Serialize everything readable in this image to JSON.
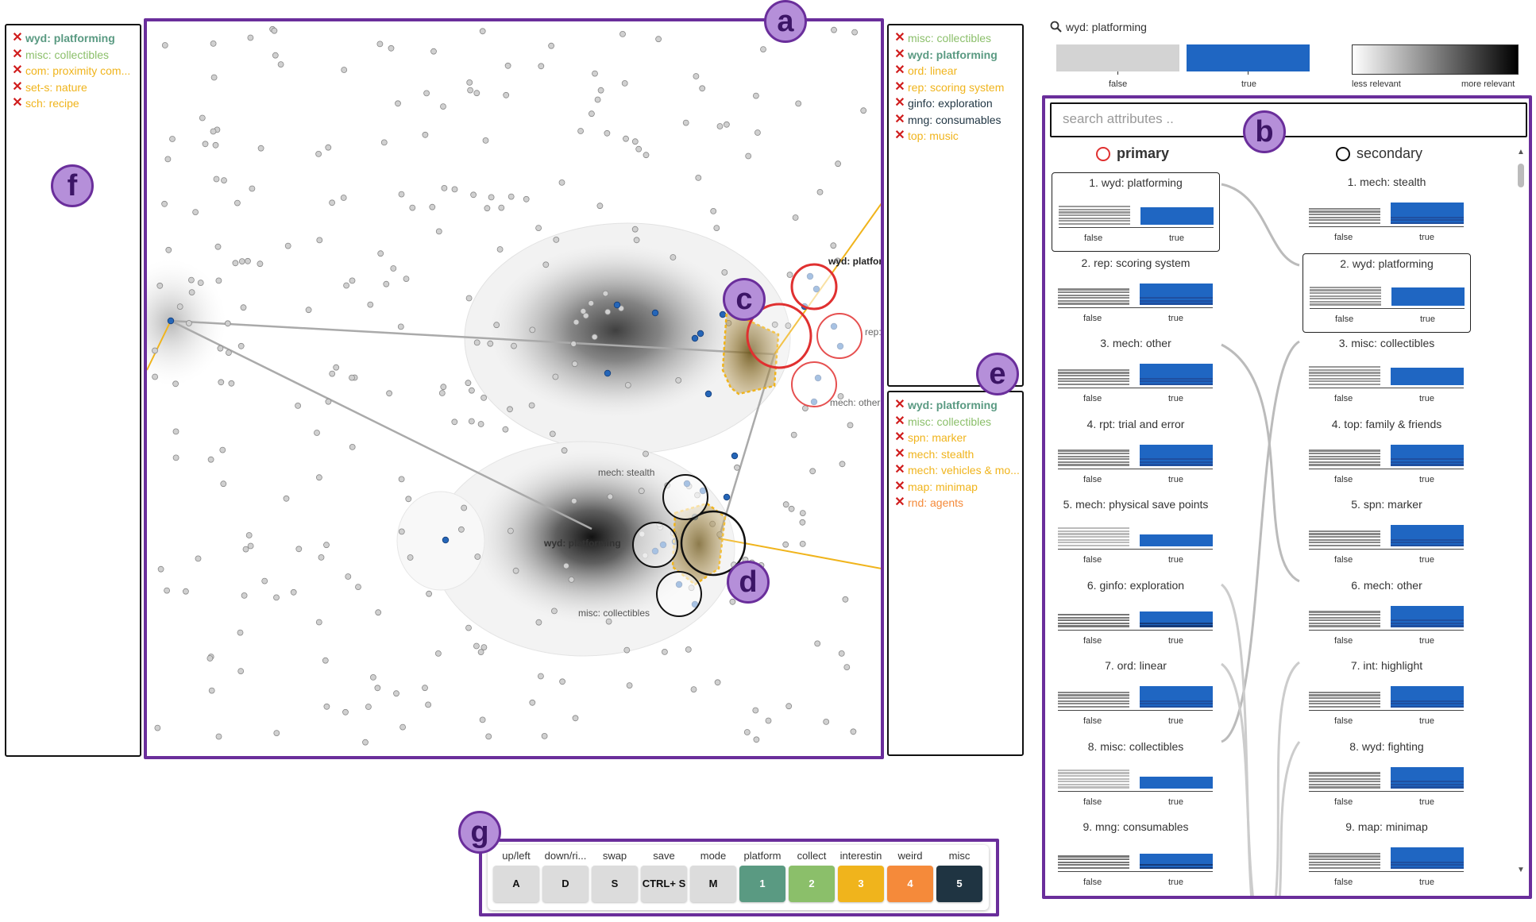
{
  "left_panel": {
    "tags": [
      {
        "label": "wyd: platforming",
        "color": "#5a9a82",
        "bold": true
      },
      {
        "label": "misc: collectibles",
        "color": "#8bbf6a"
      },
      {
        "label": "com: proximity com...",
        "color": "#f0b41c"
      },
      {
        "label": "set-s: nature",
        "color": "#f0b41c"
      },
      {
        "label": "sch: recipe",
        "color": "#f0b41c"
      }
    ]
  },
  "right_top_panel": {
    "tags": [
      {
        "label": "misc: collectibles",
        "color": "#8bbf6a"
      },
      {
        "label": "wyd: platforming",
        "color": "#5a9a82",
        "bold": true
      },
      {
        "label": "ord: linear",
        "color": "#f0b41c"
      },
      {
        "label": "rep: scoring system",
        "color": "#f0b41c"
      },
      {
        "label": "ginfo: exploration",
        "color": "#1f3442"
      },
      {
        "label": "mng: consumables",
        "color": "#1f3442"
      },
      {
        "label": "top: music",
        "color": "#f0b41c"
      }
    ]
  },
  "right_bottom_panel": {
    "tags": [
      {
        "label": "wyd: platforming",
        "color": "#5a9a82",
        "bold": true
      },
      {
        "label": "misc: collectibles",
        "color": "#8bbf6a"
      },
      {
        "label": "spn: marker",
        "color": "#f0b41c"
      },
      {
        "label": "mech: stealth",
        "color": "#f0b41c"
      },
      {
        "label": "mech: vehicles & mo...",
        "color": "#f0b41c"
      },
      {
        "label": "map: minimap",
        "color": "#f0b41c"
      },
      {
        "label": "rnd: agents",
        "color": "#f58a3a"
      }
    ]
  },
  "callouts": {
    "a": "a",
    "b": "b",
    "c": "c",
    "d": "d",
    "e": "e",
    "f": "f",
    "g": "g"
  },
  "map_labels": {
    "wyd_platform": "wyd: platform",
    "rep_s": "rep: s",
    "mech_other": "mech: other",
    "mech_stealth": "mech: stealth",
    "wyd_platforming": "wyd: platforming",
    "misc_collectibles": "misc: collectibles"
  },
  "legend": {
    "query": "wyd: platforming",
    "false_label": "false",
    "true_label": "true",
    "less_label": "less relevant",
    "more_label": "more relevant",
    "false_color": "#d3d3d3",
    "true_color": "#1f66c2"
  },
  "attributes": {
    "search_placeholder": "search attributes ..",
    "primary_header": "primary",
    "secondary_header": "secondary",
    "primary": [
      {
        "label": "1. wyd: platforming",
        "selected": true,
        "fh": 0.85,
        "th": 0.75,
        "fs": "#999",
        "ts": "#1f66c2"
      },
      {
        "label": "2. rep: scoring system",
        "fh": 0.7,
        "th": 0.9,
        "fs": "#888",
        "ts": "#1f4fa0"
      },
      {
        "label": "3. mech: other",
        "fh": 0.7,
        "th": 0.9,
        "fs": "#888",
        "ts": "#1f4fa0"
      },
      {
        "label": "4. rpt: trial and error",
        "fh": 0.7,
        "th": 0.9,
        "fs": "#888",
        "ts": "#1f4fa0"
      },
      {
        "label": "5. mech: physical save points",
        "fh": 0.85,
        "th": 0.5,
        "fs": "#bbb",
        "ts": "#1f66c2"
      },
      {
        "label": "6. ginfo: exploration",
        "fh": 0.65,
        "th": 0.65,
        "fs": "#777",
        "ts": "#153b7a"
      },
      {
        "label": "7. ord: linear",
        "fh": 0.7,
        "th": 0.9,
        "fs": "#888",
        "ts": "#1f4fa0"
      },
      {
        "label": "8. misc: collectibles",
        "fh": 0.85,
        "th": 0.5,
        "fs": "#bbb",
        "ts": "#1f66c2"
      },
      {
        "label": "9. mng: consumables",
        "fh": 0.65,
        "th": 0.65,
        "fs": "#777",
        "ts": "#153b7a"
      }
    ],
    "secondary": [
      {
        "label": "1. mech: stealth",
        "fh": 0.7,
        "th": 0.9,
        "fs": "#888",
        "ts": "#1f4fa0"
      },
      {
        "label": "2. wyd: platforming",
        "selected": true,
        "fh": 0.85,
        "th": 0.75,
        "fs": "#999",
        "ts": "#1f66c2"
      },
      {
        "label": "3. misc: collectibles",
        "fh": 0.85,
        "th": 0.75,
        "fs": "#999",
        "ts": "#1f66c2"
      },
      {
        "label": "4. top: family & friends",
        "fh": 0.7,
        "th": 0.9,
        "fs": "#888",
        "ts": "#1f4fa0"
      },
      {
        "label": "5. spn: marker",
        "fh": 0.7,
        "th": 0.9,
        "fs": "#888",
        "ts": "#1f4fa0"
      },
      {
        "label": "6. mech: other",
        "fh": 0.7,
        "th": 0.9,
        "fs": "#888",
        "ts": "#1f4fa0"
      },
      {
        "label": "7. int: highlight",
        "fh": 0.7,
        "th": 0.9,
        "fs": "#888",
        "ts": "#1f4fa0"
      },
      {
        "label": "8. wyd: fighting",
        "fh": 0.7,
        "th": 0.9,
        "fs": "#888",
        "ts": "#1f4fa0"
      },
      {
        "label": "9. map: minimap",
        "fh": 0.7,
        "th": 0.9,
        "fs": "#888",
        "ts": "#1f4fa0"
      }
    ]
  },
  "keys": [
    {
      "label": "up/left",
      "key": "A",
      "bg": "#dcdcdc",
      "fg": "#111"
    },
    {
      "label": "down/ri...",
      "key": "D",
      "bg": "#dcdcdc",
      "fg": "#111"
    },
    {
      "label": "swap",
      "key": "S",
      "bg": "#dcdcdc",
      "fg": "#111"
    },
    {
      "label": "save",
      "key": "CTRL+ S",
      "bg": "#dcdcdc",
      "fg": "#111"
    },
    {
      "label": "mode",
      "key": "M",
      "bg": "#dcdcdc",
      "fg": "#111"
    },
    {
      "label": "platform",
      "key": "1",
      "bg": "#5a9a82",
      "fg": "#fff"
    },
    {
      "label": "collect",
      "key": "2",
      "bg": "#8bbf6a",
      "fg": "#fff"
    },
    {
      "label": "interestin",
      "key": "3",
      "bg": "#f0b41c",
      "fg": "#fff"
    },
    {
      "label": "weird",
      "key": "4",
      "bg": "#f58a3a",
      "fg": "#fff"
    },
    {
      "label": "misc",
      "key": "5",
      "bg": "#1f3442",
      "fg": "#fff"
    }
  ]
}
